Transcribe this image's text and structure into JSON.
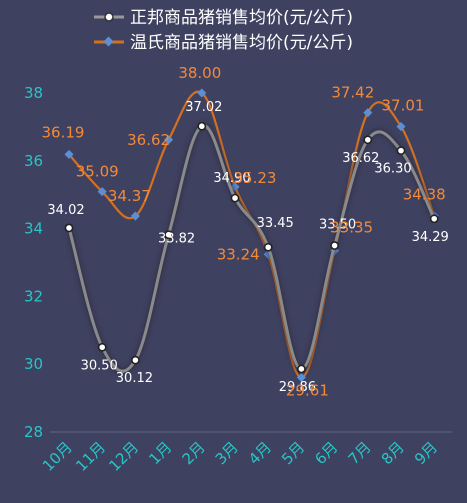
{
  "chart_data": {
    "type": "line",
    "title": "",
    "xlabel": "",
    "ylabel": "",
    "categories": [
      "10月",
      "11月",
      "12月",
      "1月",
      "2月",
      "3月",
      "4月",
      "5月",
      "6月",
      "7月",
      "8月",
      "9月"
    ],
    "ylim": [
      28,
      38
    ],
    "yticks": [
      "28",
      "30",
      "32",
      "34",
      "36",
      "38"
    ],
    "grid": false,
    "legend_position": "top",
    "series": [
      {
        "name": "正邦商品猪销售均价(元/公斤)",
        "color": "#8a8a8a",
        "marker": "circle-white",
        "values": [
          34.02,
          30.5,
          30.12,
          33.82,
          37.02,
          34.9,
          33.45,
          29.86,
          33.5,
          36.62,
          36.3,
          34.29
        ],
        "labels": [
          "34.02",
          "30.50",
          "30.12",
          "33.82",
          "37.02",
          "34.90",
          "33.45",
          "29.86",
          "33.50",
          "36.62",
          "36.30",
          "34.29"
        ]
      },
      {
        "name": "温氏商品猪销售均价(元/公斤)",
        "color": "#d4701e",
        "marker_color": "#5b8fd6",
        "marker": "diamond",
        "values": [
          36.19,
          35.09,
          34.37,
          36.62,
          38.0,
          35.23,
          33.24,
          29.61,
          33.35,
          37.42,
          37.01,
          34.38
        ],
        "labels": [
          "36.19",
          "35.09",
          "34.37",
          "36.62",
          "38.00",
          "35.23",
          "33.24",
          "29.61",
          "33.35",
          "37.42",
          "37.01",
          "34.38"
        ]
      }
    ]
  }
}
